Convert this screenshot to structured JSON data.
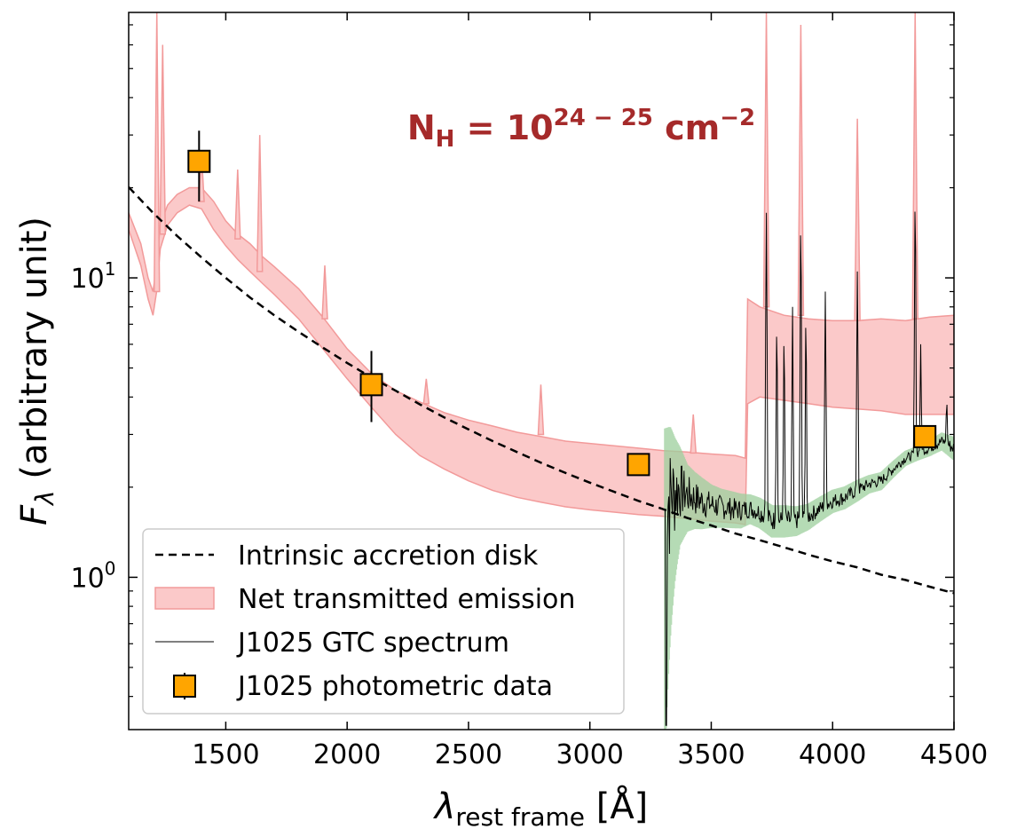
{
  "chart_data": {
    "type": "line",
    "title": "",
    "annotation": {
      "base": "N",
      "base_sub": "H",
      "equals": " = 10",
      "exponent": "24 − 25",
      "unit": " cm",
      "unit_exponent": "−2",
      "color": "#a52a2a"
    },
    "xlabel": {
      "symbol": "λ",
      "subscript": "rest frame",
      "unit": " [Å]"
    },
    "ylabel": {
      "symbol": "F",
      "subscript": "λ",
      "rest": " (arbitrary unit)"
    },
    "xscale": "linear",
    "yscale": "log",
    "xlim": [
      1100,
      4500
    ],
    "ylim": [
      0.31,
      77
    ],
    "x_ticks": [
      {
        "value": 1500,
        "label": "1500"
      },
      {
        "value": 2000,
        "label": "2000"
      },
      {
        "value": 2500,
        "label": "2500"
      },
      {
        "value": 3000,
        "label": "3000"
      },
      {
        "value": 3500,
        "label": "3500"
      },
      {
        "value": 4000,
        "label": "4000"
      },
      {
        "value": 4500,
        "label": "4500"
      }
    ],
    "y_major_ticks": [
      {
        "value": 1,
        "base": "10",
        "exp": "0"
      },
      {
        "value": 10,
        "base": "10",
        "exp": "1"
      }
    ],
    "y_minor_ticks": [
      0.4,
      0.5,
      0.6,
      0.7,
      0.8,
      0.9,
      2,
      3,
      4,
      5,
      6,
      7,
      8,
      9,
      20,
      30,
      40,
      50,
      60,
      70
    ],
    "legend": {
      "position": "lower-left",
      "entries": [
        {
          "label": "Intrinsic accretion disk",
          "kind": "dashed-line"
        },
        {
          "label": "Net transmitted emission",
          "kind": "filled-band"
        },
        {
          "label": "J1025 GTC spectrum",
          "kind": "thin-line"
        },
        {
          "label": "J1025 photometric data",
          "kind": "square-marker"
        }
      ]
    },
    "series": [
      {
        "name": "Intrinsic accretion disk",
        "kind": "line",
        "style": "dashed",
        "color": "#000000",
        "x": [
          1100,
          1200,
          1300,
          1400,
          1500,
          1600,
          1700,
          1800,
          1900,
          2000,
          2100,
          2200,
          2300,
          2400,
          2500,
          2600,
          2700,
          2800,
          2900,
          3000,
          3100,
          3200,
          3300,
          3400,
          3500,
          3600,
          3700,
          3800,
          3900,
          4000,
          4100,
          4200,
          4300,
          4400,
          4500
        ],
        "y": [
          20.1,
          16.5,
          13.8,
          11.7,
          10.0,
          8.6,
          7.5,
          6.6,
          5.85,
          5.2,
          4.65,
          4.2,
          3.78,
          3.42,
          3.12,
          2.85,
          2.62,
          2.41,
          2.23,
          2.07,
          1.93,
          1.8,
          1.69,
          1.58,
          1.49,
          1.4,
          1.33,
          1.26,
          1.19,
          1.13,
          1.08,
          1.02,
          0.98,
          0.93,
          0.885
        ]
      },
      {
        "name": "Net transmitted emission",
        "kind": "band",
        "color": "#f7a1a1",
        "x": [
          1100,
          1150,
          1180,
          1200,
          1215,
          1230,
          1260,
          1300,
          1350,
          1400,
          1450,
          1500,
          1550,
          1600,
          1650,
          1700,
          1800,
          1900,
          2000,
          2100,
          2200,
          2300,
          2400,
          2500,
          2600,
          2700,
          2800,
          2900,
          3000,
          3100,
          3200,
          3300,
          3400,
          3500,
          3600,
          3640,
          3650,
          3700,
          3800,
          3900,
          4000,
          4100,
          4200,
          4300,
          4400,
          4500
        ],
        "low": [
          14.5,
          11.0,
          8.5,
          7.5,
          9.0,
          12.5,
          15.0,
          16.5,
          17.5,
          17.0,
          14.5,
          12.8,
          11.5,
          10.5,
          9.6,
          8.8,
          7.3,
          5.8,
          4.6,
          3.7,
          3.0,
          2.55,
          2.3,
          2.1,
          1.95,
          1.85,
          1.78,
          1.72,
          1.68,
          1.65,
          1.62,
          1.6,
          1.57,
          1.54,
          1.52,
          1.5,
          3.8,
          4.0,
          3.9,
          3.8,
          3.7,
          3.65,
          3.6,
          3.5,
          3.5,
          3.5
        ],
        "high": [
          16.5,
          13.0,
          10.0,
          9.0,
          11.0,
          15.0,
          17.5,
          19.0,
          20.0,
          20.0,
          18.0,
          15.5,
          14.0,
          13.0,
          11.8,
          10.9,
          9.2,
          7.4,
          5.8,
          4.8,
          4.2,
          3.85,
          3.55,
          3.35,
          3.2,
          3.05,
          2.95,
          2.85,
          2.8,
          2.75,
          2.7,
          2.65,
          2.62,
          2.58,
          2.55,
          2.5,
          8.5,
          8.0,
          7.5,
          7.3,
          7.2,
          7.2,
          7.3,
          7.2,
          7.4,
          7.5
        ]
      },
      {
        "name": "Net transmitted emission lines",
        "kind": "spikes",
        "color": "#f7a1a1",
        "x": [
          1216,
          1240,
          1400,
          1549,
          1640,
          1908,
          2326,
          2798,
          3426,
          3727,
          3869,
          4102,
          4340
        ],
        "base": [
          9.0,
          14.0,
          18.0,
          13.5,
          10.5,
          7.3,
          3.8,
          3.0,
          2.6,
          8.0,
          7.5,
          7.2,
          7.3
        ],
        "peak": [
          77,
          60,
          26,
          23,
          30,
          11,
          4.6,
          4.4,
          3.5,
          77,
          70,
          34,
          77
        ]
      },
      {
        "name": "J1025 GTC spectrum",
        "kind": "line",
        "color": "#000000",
        "error_color": "#9ccf9c",
        "x": [
          3310,
          3330,
          3350,
          3370,
          3400,
          3430,
          3460,
          3500,
          3540,
          3580,
          3620,
          3660,
          3700,
          3750,
          3800,
          3850,
          3900,
          3950,
          4000,
          4050,
          4100,
          4150,
          4200,
          4250,
          4300,
          4350,
          4400,
          4450,
          4500
        ],
        "y": [
          1.7,
          1.9,
          1.95,
          2.0,
          1.9,
          1.85,
          1.8,
          1.75,
          1.72,
          1.7,
          1.68,
          1.7,
          1.65,
          1.55,
          1.55,
          1.55,
          1.6,
          1.7,
          1.8,
          1.85,
          1.95,
          2.05,
          2.1,
          2.3,
          2.5,
          2.6,
          2.7,
          2.85,
          2.7
        ],
        "noise": [
          0.9,
          0.8,
          0.6,
          0.45,
          0.3,
          0.25,
          0.22,
          0.18,
          0.16,
          0.15,
          0.14,
          0.12,
          0.12,
          0.12,
          0.12,
          0.11,
          0.1,
          0.1,
          0.1,
          0.1,
          0.1,
          0.09,
          0.09,
          0.09,
          0.09,
          0.09,
          0.1,
          0.12,
          0.15
        ],
        "dip": {
          "x": 3315,
          "y": 0.32
        },
        "lines": [
          {
            "x": 3727,
            "peak": 16.5
          },
          {
            "x": 3770,
            "peak": 7.0
          },
          {
            "x": 3800,
            "peak": 6.5
          },
          {
            "x": 3835,
            "peak": 8.0
          },
          {
            "x": 3869,
            "peak": 15.5
          },
          {
            "x": 3890,
            "peak": 7.5
          },
          {
            "x": 3970,
            "peak": 9.0
          },
          {
            "x": 4102,
            "peak": 10.5
          },
          {
            "x": 4340,
            "peak": 18.5
          },
          {
            "x": 4363,
            "peak": 6.0
          },
          {
            "x": 4470,
            "peak": 3.9
          }
        ]
      },
      {
        "name": "J1025 photometric data",
        "kind": "errorbar",
        "color": "#ffa500",
        "x": [
          1390,
          2100,
          3200,
          4380
        ],
        "y": [
          24.5,
          4.4,
          2.38,
          2.95
        ],
        "yerr_low": [
          6.5,
          1.1,
          0.18,
          0.25
        ],
        "yerr_high": [
          6.5,
          1.3,
          0.18,
          0.25
        ]
      }
    ]
  }
}
